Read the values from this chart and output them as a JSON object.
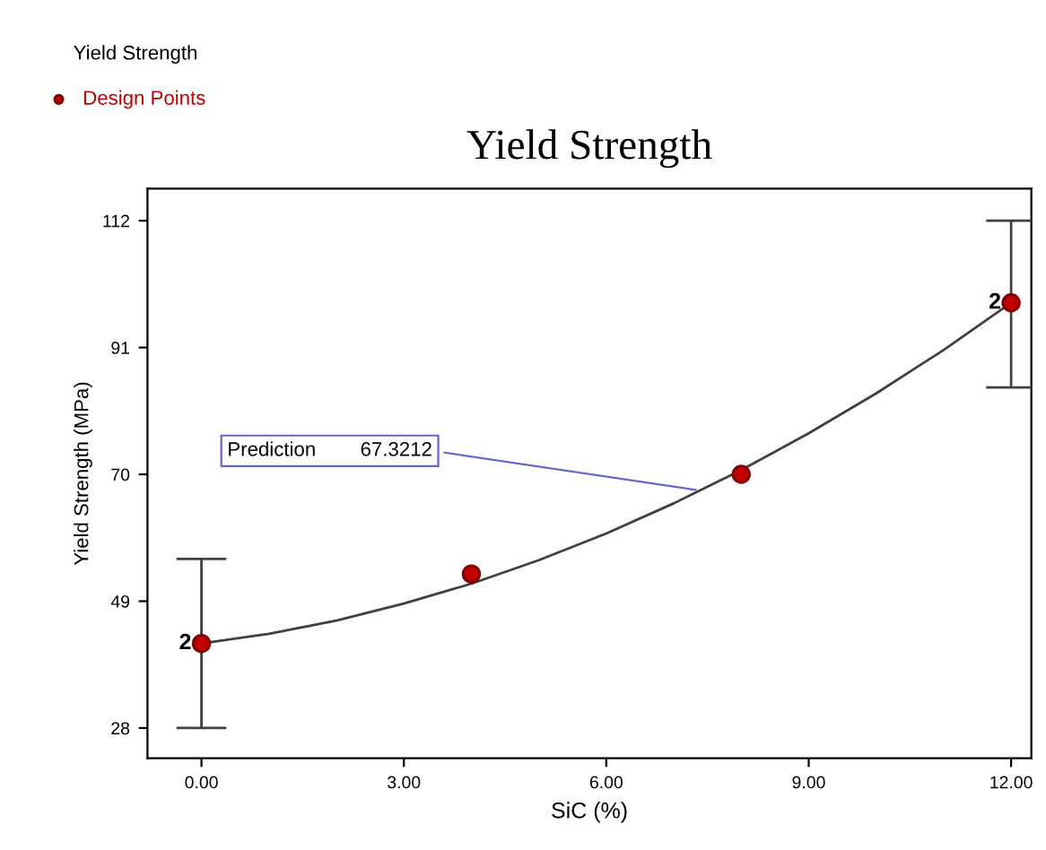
{
  "chart_data": {
    "type": "scatter",
    "title": "Yield Strength",
    "xlabel": "SiC (%)",
    "ylabel": "Yield Strength (MPa)",
    "series": [
      {
        "name": "Design Points",
        "color": "#c00000",
        "marker": "circle",
        "x": [
          0,
          4,
          8,
          12
        ],
        "values": [
          42,
          53.5,
          70,
          98.4
        ],
        "errors": [
          [
            28,
            56
          ],
          null,
          null,
          [
            84.4,
            112
          ]
        ]
      },
      {
        "type": "line",
        "color": "#404040",
        "x": [
          0,
          1,
          2,
          3,
          4,
          5,
          6,
          7,
          8,
          9,
          10,
          11,
          12
        ],
        "values": [
          42.0,
          43.6,
          45.8,
          48.6,
          51.9,
          55.8,
          60.2,
          65.2,
          70.7,
          76.8,
          83.4,
          90.6,
          98.4
        ]
      }
    ],
    "annotations": [
      "Yield Strength",
      {
        "text": "Prediction        67.3212",
        "x": 7.4,
        "y": 67.3
      },
      {
        "text": "2",
        "x": 0,
        "y": 42
      },
      {
        "text": "2",
        "x": 12,
        "y": 98.4
      }
    ],
    "xlim": [
      -0.8,
      12.3
    ],
    "ylim": [
      23,
      117.3
    ],
    "xticks": [
      {
        "value": 0,
        "label": "0.00"
      },
      {
        "value": 3,
        "label": "3.00"
      },
      {
        "value": 6,
        "label": "6.00"
      },
      {
        "value": 9,
        "label": "9.00"
      },
      {
        "value": 12,
        "label": "12.00"
      }
    ],
    "yticks": [
      28,
      49,
      70,
      91,
      112
    ],
    "grid": false,
    "legend": "top left"
  }
}
